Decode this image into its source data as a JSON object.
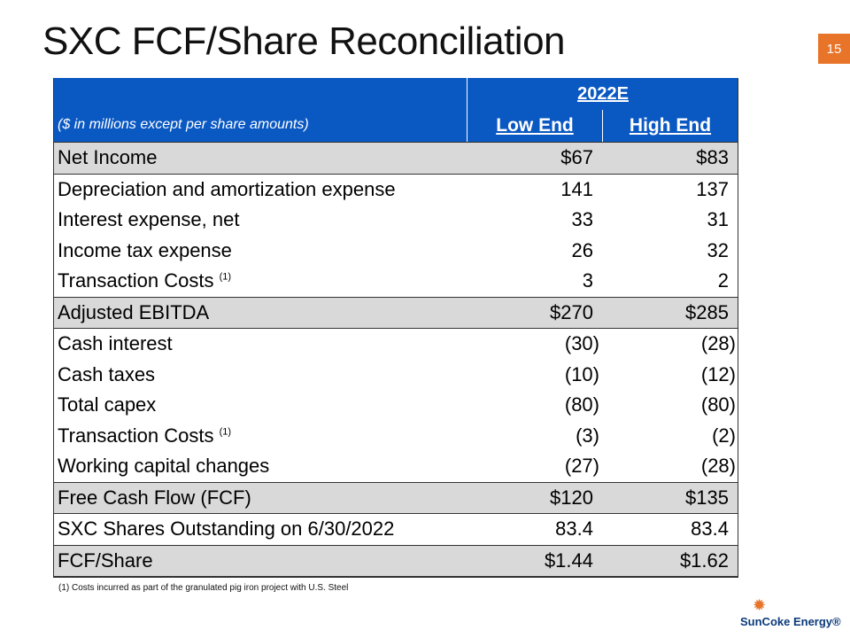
{
  "title": "SXC FCF/Share Reconciliation",
  "page_number": "15",
  "table": {
    "period": "2022E",
    "units_note": "($ in millions except per share amounts)",
    "col_low": "Low End",
    "col_high": "High End",
    "rows": [
      {
        "label": "Net Income",
        "low": "$67",
        "high": "$83"
      },
      {
        "label": "Depreciation and amortization expense",
        "low": "141",
        "high": "137"
      },
      {
        "label": "Interest expense, net",
        "low": "33",
        "high": "31"
      },
      {
        "label": "Income tax expense",
        "low": "26",
        "high": "32"
      },
      {
        "label": "Transaction Costs",
        "footnote_ref": "(1)",
        "low": "3",
        "high": "2"
      },
      {
        "label": "Adjusted EBITDA",
        "low": "$270",
        "high": "$285"
      },
      {
        "label": "Cash interest",
        "low": "(30)",
        "high": "(28)"
      },
      {
        "label": "Cash taxes",
        "low": "(10)",
        "high": "(12)"
      },
      {
        "label": "Total capex",
        "low": "(80)",
        "high": "(80)"
      },
      {
        "label": "Transaction Costs",
        "footnote_ref": "(1)",
        "low": "(3)",
        "high": "(2)"
      },
      {
        "label": "Working capital changes",
        "low": "(27)",
        "high": "(28)"
      },
      {
        "label": "Free Cash Flow (FCF)",
        "low": "$120",
        "high": "$135"
      },
      {
        "label": "SXC Shares Outstanding on 6/30/2022",
        "low": "83.4",
        "high": "83.4"
      },
      {
        "label": "FCF/Share",
        "low": "$1.44",
        "high": "$1.62"
      }
    ]
  },
  "footnote": "(1)  Costs incurred as part of the granulated pig iron project with U.S. Steel",
  "logo_text": "SunCoke Energy®",
  "colors": {
    "header_blue": "#0a58c2",
    "accent_orange": "#e8742a",
    "shade_gray": "#d9d9d9"
  }
}
